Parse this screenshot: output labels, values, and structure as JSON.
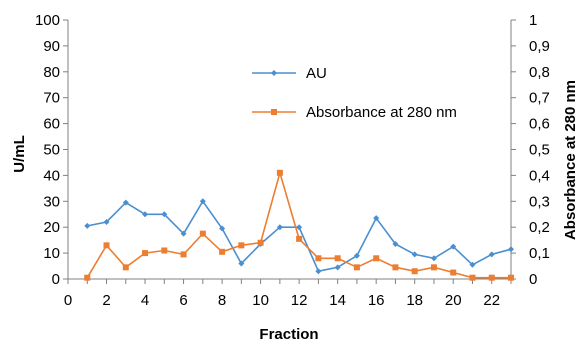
{
  "chart_data": {
    "type": "line",
    "xlabel": "Fraction",
    "ylabel": "U/mL",
    "y2label": "Absorbance at 280 nm",
    "xlim": [
      0,
      23
    ],
    "ylim": [
      0,
      100
    ],
    "y2lim": [
      0,
      1
    ],
    "x_ticks": [
      "0",
      "2",
      "4",
      "6",
      "8",
      "10",
      "12",
      "14",
      "16",
      "18",
      "20",
      "22"
    ],
    "y_ticks": [
      "0",
      "10",
      "20",
      "30",
      "40",
      "50",
      "60",
      "70",
      "80",
      "90",
      "100"
    ],
    "y2_ticks": [
      "0",
      "0,1",
      "0,2",
      "0,3",
      "0,4",
      "0,5",
      "0,6",
      "0,7",
      "0,8",
      "0,9",
      "1"
    ],
    "grid": false,
    "legend_position": "top-right",
    "series": [
      {
        "name": "AU",
        "axis": "left",
        "color": "#4a8fcf",
        "marker": "diamond",
        "x": [
          1,
          2,
          3,
          4,
          5,
          6,
          7,
          8,
          9,
          10,
          11,
          12,
          13,
          14,
          15,
          16,
          17,
          18,
          19,
          20,
          21,
          22,
          23
        ],
        "values": [
          20.5,
          22,
          29.5,
          25,
          25,
          17.5,
          30,
          19.5,
          6,
          13.5,
          20,
          20,
          3,
          4.5,
          9,
          23.5,
          13.5,
          9.5,
          8,
          12.5,
          5.5,
          9.5,
          11.5
        ]
      },
      {
        "name": "Absorbance at 280 nm",
        "axis": "right",
        "color": "#ed7d31",
        "marker": "square",
        "x": [
          1,
          2,
          3,
          4,
          5,
          6,
          7,
          8,
          9,
          10,
          11,
          12,
          13,
          14,
          15,
          16,
          17,
          18,
          19,
          20,
          21,
          22,
          23
        ],
        "values": [
          0.005,
          0.13,
          0.045,
          0.1,
          0.11,
          0.095,
          0.175,
          0.105,
          0.13,
          0.14,
          0.41,
          0.155,
          0.08,
          0.08,
          0.045,
          0.08,
          0.045,
          0.03,
          0.045,
          0.025,
          0.005,
          0.005,
          0.005
        ]
      }
    ]
  }
}
